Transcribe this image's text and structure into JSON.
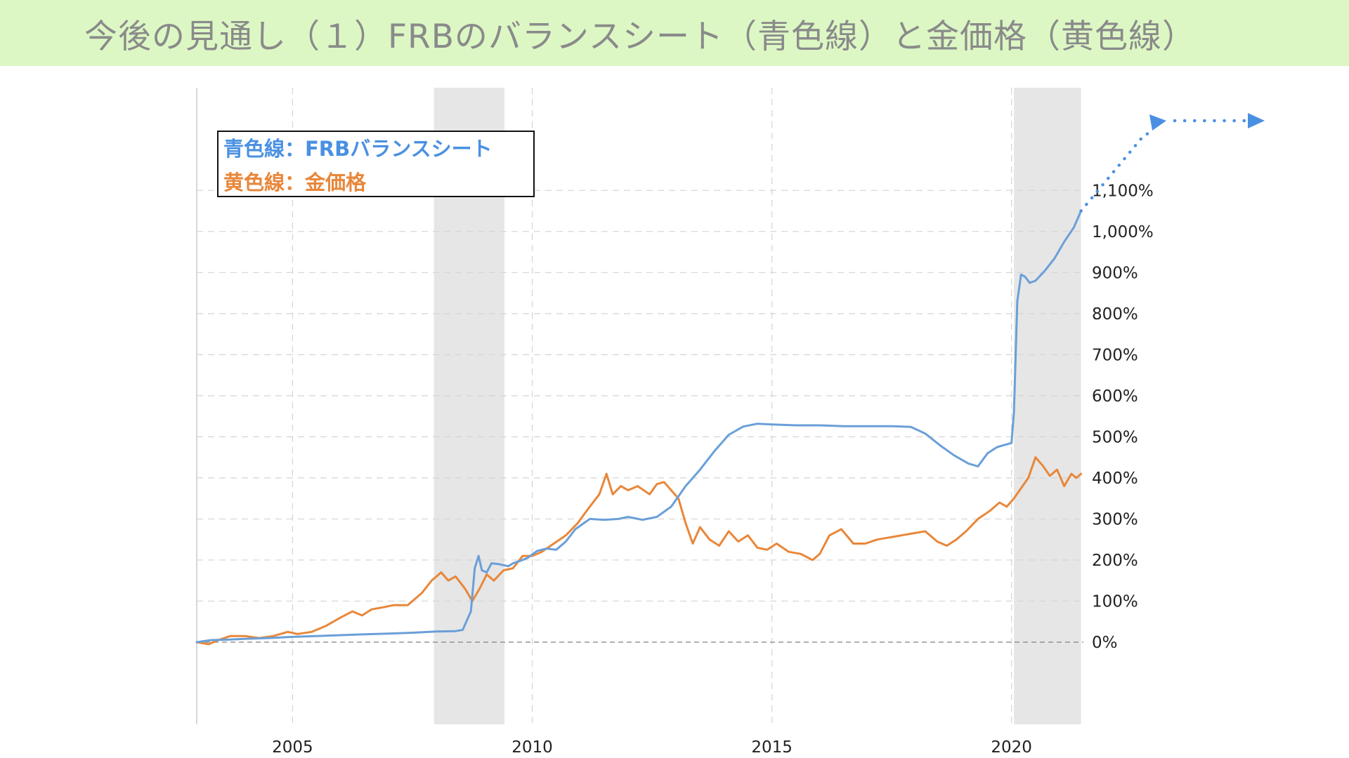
{
  "header": {
    "title": "今後の見通し（１）FRBのバランスシート（青色線）と金価格（黄色線）"
  },
  "legend": {
    "blue_label": "青色線：FRBバランスシート",
    "orange_label": "黄色線：金価格"
  },
  "colors": {
    "header_bg": "#dcf7c4",
    "title_text": "#8a8a8a",
    "blue": "#6a9fd8",
    "orange": "#e8873a",
    "arrow": "#4a90e2",
    "recession": "#e6e6e6",
    "grid": "#d4d4d4"
  },
  "chart_data": {
    "type": "line",
    "xlim": [
      2003.0,
      2021.5
    ],
    "ylim": [
      -200,
      1350
    ],
    "x_ticks": [
      2005,
      2010,
      2015,
      2020
    ],
    "x_tick_labels": [
      "2005",
      "2010",
      "2015",
      "2020"
    ],
    "y_ticks": [
      0,
      100,
      200,
      300,
      400,
      500,
      600,
      700,
      800,
      900,
      1000,
      1100
    ],
    "y_tick_labels": [
      "0%",
      "100%",
      "200%",
      "300%",
      "400%",
      "500%",
      "600%",
      "700%",
      "800%",
      "900%",
      "1,000%",
      "1,100%"
    ],
    "recessions": [
      [
        2007.95,
        2009.42
      ],
      [
        2020.05,
        2021.45
      ]
    ],
    "legend_position": "top-left",
    "grid": true,
    "series": [
      {
        "name": "FRBバランスシート",
        "color": "#6a9fd8",
        "x": [
          2003.0,
          2003.3,
          2003.6,
          2004.0,
          2004.5,
          2005.0,
          2005.5,
          2006.0,
          2006.5,
          2007.0,
          2007.5,
          2008.0,
          2008.4,
          2008.55,
          2008.72,
          2008.8,
          2008.88,
          2008.95,
          2009.05,
          2009.15,
          2009.3,
          2009.5,
          2009.6,
          2009.75,
          2009.9,
          2010.1,
          2010.3,
          2010.5,
          2010.7,
          2010.9,
          2011.2,
          2011.5,
          2011.8,
          2012.0,
          2012.3,
          2012.6,
          2012.9,
          2013.2,
          2013.5,
          2013.8,
          2014.1,
          2014.4,
          2014.7,
          2015.0,
          2015.5,
          2016.0,
          2016.5,
          2017.0,
          2017.5,
          2017.9,
          2018.2,
          2018.5,
          2018.8,
          2019.1,
          2019.3,
          2019.5,
          2019.7,
          2019.85,
          2020.0,
          2020.05,
          2020.12,
          2020.2,
          2020.28,
          2020.38,
          2020.5,
          2020.7,
          2020.9,
          2021.1,
          2021.3,
          2021.45
        ],
        "values": [
          0,
          5,
          6,
          8,
          10,
          13,
          15,
          17,
          19,
          21,
          23,
          26,
          27,
          30,
          75,
          180,
          210,
          175,
          170,
          192,
          190,
          185,
          192,
          198,
          205,
          222,
          228,
          225,
          245,
          275,
          300,
          298,
          300,
          305,
          298,
          305,
          330,
          380,
          420,
          465,
          505,
          525,
          532,
          530,
          528,
          528,
          526,
          526,
          526,
          524,
          508,
          480,
          455,
          435,
          428,
          460,
          475,
          480,
          485,
          560,
          830,
          895,
          890,
          875,
          880,
          905,
          935,
          975,
          1010,
          1050
        ]
      },
      {
        "name": "金価格",
        "color": "#e8873a",
        "x": [
          2003.0,
          2003.25,
          2003.45,
          2003.7,
          2004.0,
          2004.3,
          2004.6,
          2004.9,
          2005.1,
          2005.4,
          2005.7,
          2006.0,
          2006.25,
          2006.45,
          2006.65,
          2006.9,
          2007.1,
          2007.4,
          2007.7,
          2007.9,
          2008.1,
          2008.25,
          2008.4,
          2008.6,
          2008.75,
          2008.9,
          2009.05,
          2009.2,
          2009.4,
          2009.6,
          2009.8,
          2010.0,
          2010.2,
          2010.45,
          2010.7,
          2010.95,
          2011.2,
          2011.4,
          2011.55,
          2011.68,
          2011.85,
          2012.0,
          2012.2,
          2012.45,
          2012.6,
          2012.75,
          2012.9,
          2013.05,
          2013.2,
          2013.35,
          2013.5,
          2013.7,
          2013.9,
          2014.1,
          2014.3,
          2014.5,
          2014.7,
          2014.9,
          2015.1,
          2015.35,
          2015.6,
          2015.85,
          2016.0,
          2016.2,
          2016.45,
          2016.7,
          2016.95,
          2017.2,
          2017.45,
          2017.7,
          2017.95,
          2018.2,
          2018.45,
          2018.65,
          2018.85,
          2019.05,
          2019.3,
          2019.55,
          2019.75,
          2019.9,
          2020.05,
          2020.2,
          2020.35,
          2020.5,
          2020.65,
          2020.8,
          2020.95,
          2021.1,
          2021.25,
          2021.35,
          2021.45
        ],
        "values": [
          0,
          -5,
          5,
          15,
          15,
          10,
          15,
          25,
          20,
          25,
          40,
          60,
          75,
          65,
          80,
          85,
          90,
          90,
          120,
          150,
          170,
          150,
          160,
          130,
          100,
          130,
          165,
          150,
          175,
          180,
          210,
          210,
          220,
          240,
          260,
          290,
          330,
          360,
          410,
          360,
          380,
          370,
          380,
          360,
          385,
          390,
          370,
          350,
          290,
          240,
          280,
          250,
          235,
          270,
          245,
          260,
          230,
          225,
          240,
          220,
          215,
          200,
          215,
          260,
          275,
          240,
          240,
          250,
          255,
          260,
          265,
          270,
          245,
          235,
          250,
          270,
          300,
          320,
          340,
          330,
          350,
          375,
          400,
          450,
          430,
          405,
          420,
          380,
          410,
          400,
          410
        ]
      }
    ]
  }
}
